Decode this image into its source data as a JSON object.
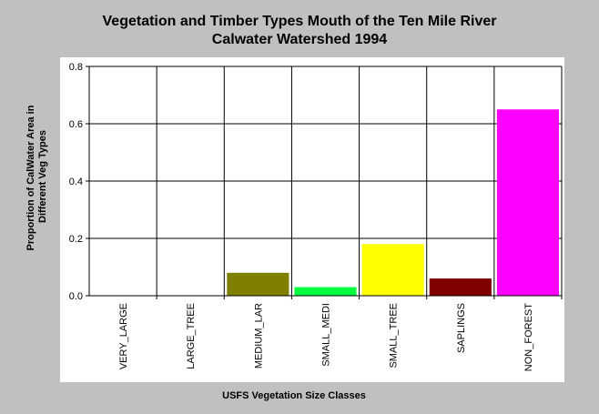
{
  "title_line1": "Vegetation and Timber Types Mouth of the Ten Mile River",
  "title_line2": "Calwater Watershed 1994",
  "chart_data": {
    "type": "bar",
    "title": "Vegetation and Timber Types Mouth of the Ten Mile River Calwater Watershed 1994",
    "xlabel": "USFS Vegetation Size Classes",
    "ylabel": "Proportion of CalWater Area in Different Veg Types",
    "ylabel_lines": [
      "Proportion of CalWater Area in",
      "Different Veg Types"
    ],
    "ylim": [
      0,
      0.8
    ],
    "yticks": [
      "0.0",
      "0.2",
      "0.4",
      "0.6",
      "0.8"
    ],
    "ytick_values": [
      0,
      0.2,
      0.4,
      0.6,
      0.8
    ],
    "categories": [
      "VERY_LARGE",
      "LARGE_TREE",
      "MEDIUM_LAR",
      "SMALL_MEDI",
      "SMALL_TREE",
      "SAPLINGS",
      "NON_FOREST"
    ],
    "values": [
      0,
      0,
      0.08,
      0.03,
      0.18,
      0.06,
      0.65
    ],
    "colors": [
      "#808000",
      "#808000",
      "#808000",
      "#00ff40",
      "#ffff00",
      "#800000",
      "#ff00ff"
    ],
    "grid": true
  }
}
